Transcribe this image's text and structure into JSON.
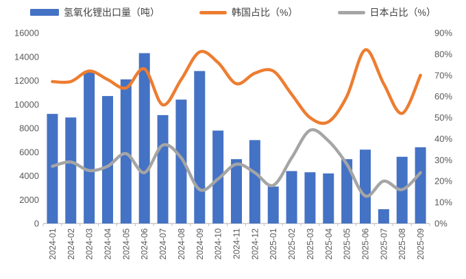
{
  "legend": {
    "items": [
      {
        "label": "氢氧化锂出口量（吨）",
        "swatch": "bar",
        "color": "#4472C4"
      },
      {
        "label": "韩国占比（%）",
        "swatch": "line",
        "color": "#ED7D31"
      },
      {
        "label": "日本占比（%）",
        "swatch": "line",
        "color": "#A5A5A5"
      }
    ]
  },
  "chart_data": {
    "type": "bar",
    "subtype": "combo-bar-line",
    "title": "",
    "legend_position": "top",
    "grid": false,
    "categories": [
      "2024-01",
      "2024-02",
      "2024-03",
      "2024-04",
      "2024-05",
      "2024-06",
      "2024-07",
      "2024-08",
      "2024-09",
      "2024-10",
      "2024-11",
      "2024-12",
      "2025-01",
      "2025-02",
      "2025-03",
      "2025-04",
      "2025-05",
      "2025-06",
      "2025-07",
      "2025-08",
      "2025-09"
    ],
    "series": [
      {
        "name": "氢氧化锂出口量（吨）",
        "type": "bar",
        "axis": "left",
        "color": "#4472C4",
        "values": [
          9200,
          8900,
          12800,
          10700,
          12100,
          14300,
          9100,
          10400,
          12800,
          7800,
          5400,
          7000,
          3100,
          4400,
          4300,
          4200,
          5400,
          6200,
          1200,
          5600,
          6400
        ]
      },
      {
        "name": "韩国占比（%）",
        "type": "line",
        "axis": "right",
        "color": "#ED7D31",
        "values": [
          67,
          67,
          72,
          68,
          64,
          73,
          56,
          68,
          81,
          76,
          66,
          71,
          72,
          61,
          50,
          48,
          60,
          82,
          66,
          52,
          70
        ]
      },
      {
        "name": "日本占比（%）",
        "type": "line",
        "axis": "right",
        "color": "#A5A5A5",
        "values": [
          27,
          29,
          25,
          27,
          33,
          24,
          37,
          31,
          16,
          21,
          28,
          24,
          18,
          31,
          44,
          39,
          28,
          13,
          20,
          16,
          24
        ]
      }
    ],
    "left_axis": {
      "min": 0,
      "max": 16000,
      "step": 2000,
      "tick_labels": [
        "0",
        "2000",
        "4000",
        "6000",
        "8000",
        "10000",
        "12000",
        "14000",
        "16000"
      ]
    },
    "right_axis": {
      "min": 0,
      "max": 90,
      "step": 10,
      "tick_labels": [
        "0%",
        "10%",
        "20%",
        "30%",
        "40%",
        "50%",
        "60%",
        "70%",
        "80%",
        "90%"
      ]
    }
  },
  "style": {
    "axis_text_color": "#595959",
    "axis_line_color": "#BFBFBF",
    "bar_color": "#4472C4",
    "korea_line_color": "#ED7D31",
    "japan_line_color": "#A5A5A5"
  }
}
